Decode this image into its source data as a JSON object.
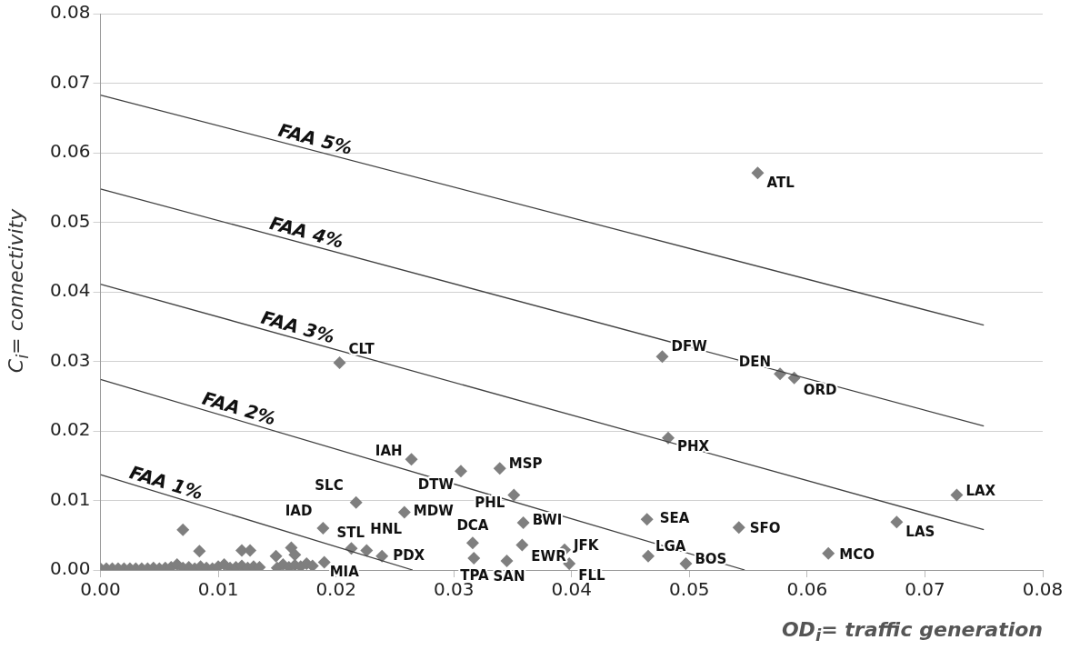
{
  "chart_data": {
    "type": "scatter",
    "xlabel": "OD$_{i}$= traffic generation",
    "ylabel": "C$_{i}$= connectivity",
    "xlim": [
      0,
      0.08
    ],
    "ylim": [
      0,
      0.08
    ],
    "xticks": [
      {
        "value": 0,
        "label": "0.00"
      },
      {
        "value": 0.01,
        "label": "0.01"
      },
      {
        "value": 0.02,
        "label": "0.02"
      },
      {
        "value": 0.03,
        "label": "0.03"
      },
      {
        "value": 0.04,
        "label": "0.04"
      },
      {
        "value": 0.05,
        "label": "0.05"
      },
      {
        "value": 0.06,
        "label": "0.06"
      },
      {
        "value": 0.07,
        "label": "0.07"
      },
      {
        "value": 0.08,
        "label": "0.08"
      }
    ],
    "yticks": [
      {
        "value": 0,
        "label": "0.00"
      },
      {
        "value": 0.01,
        "label": "0.01"
      },
      {
        "value": 0.02,
        "label": "0.02"
      },
      {
        "value": 0.03,
        "label": "0.03"
      },
      {
        "value": 0.04,
        "label": "0.04"
      },
      {
        "value": 0.05,
        "label": "0.05"
      },
      {
        "value": 0.06,
        "label": "0.06"
      },
      {
        "value": 0.07,
        "label": "0.07"
      },
      {
        "value": 0.08,
        "label": "0.08"
      }
    ],
    "grid": "y",
    "legend": false,
    "marker": "diamond",
    "series": [
      {
        "type": "line",
        "name": "FAA 5%",
        "color": "#404040",
        "x": [
          0,
          0.075
        ],
        "values": [
          0.0683,
          0.0352
        ],
        "marker": "none"
      },
      {
        "type": "line",
        "name": "FAA 4%",
        "color": "#404040",
        "x": [
          0,
          0.075
        ],
        "values": [
          0.0548,
          0.0207
        ],
        "marker": "none"
      },
      {
        "type": "line",
        "name": "FAA 3%",
        "color": "#404040",
        "x": [
          0,
          0.075
        ],
        "values": [
          0.0411,
          0.0058
        ],
        "marker": "none"
      },
      {
        "type": "line",
        "name": "FAA 2%",
        "color": "#404040",
        "x": [
          0,
          0.0547
        ],
        "values": [
          0.0274,
          0
        ],
        "marker": "none"
      },
      {
        "type": "line",
        "name": "FAA 1%",
        "color": "#404040",
        "x": [
          0,
          0.0265
        ],
        "values": [
          0.0137,
          0
        ],
        "marker": "none"
      },
      {
        "type": "scatter",
        "color": "#7f7f7f",
        "x": [
          0.0558,
          0.0203,
          0.0477,
          0.0577,
          0.0589,
          0.0482,
          0.0727,
          0.0676,
          0.0618,
          0.0542,
          0.0464,
          0.0465,
          0.0497,
          0.0394,
          0.0398,
          0.0264,
          0.0306,
          0.0339,
          0.0351,
          0.0258,
          0.0359,
          0.0316,
          0.0358,
          0.0317,
          0.0345,
          0.0217,
          0.0189,
          0.0213,
          0.0226,
          0.0239,
          0.019
        ],
        "values": [
          0.0571,
          0.0298,
          0.0307,
          0.0282,
          0.0276,
          0.019,
          0.0108,
          0.0069,
          0.0024,
          0.0061,
          0.0073,
          0.002,
          0.0009,
          0.0029,
          0.0009,
          0.0159,
          0.0142,
          0.0146,
          0.0108,
          0.0083,
          0.0068,
          0.0039,
          0.0036,
          0.0017,
          0.0013,
          0.0097,
          0.006,
          0.0031,
          0.0028,
          0.002,
          0.0011
        ],
        "value_labels": [
          "ATL",
          "CLT",
          "DFW",
          "DEN",
          "ORD",
          "PHX",
          "LAX",
          "LAS",
          "MCO",
          "SFO",
          "SEA",
          "LGA",
          "BOS",
          "JFK",
          "FLL",
          "IAH",
          "DTW",
          "MSP",
          "PHL",
          "MDW",
          "BWI",
          "DCA",
          "EWR",
          "TPA",
          "SAN",
          "SLC",
          "IAD",
          "STL",
          "HNL",
          "PDX",
          "MIA"
        ]
      },
      {
        "color": "#7f7f7f",
        "x": [
          0,
          0.0005,
          0.001,
          0.0015,
          0.002,
          0.0025,
          0.003,
          0.0035,
          0.004,
          0.0045,
          0.005,
          0.0055,
          0.006,
          0.0065,
          0.007,
          0.0075,
          0.008,
          0.0085,
          0.009,
          0.0095,
          0.01,
          0.0105,
          0.011,
          0.0115,
          0.012,
          0.0125,
          0.013,
          0.0135,
          0.015,
          0.0155,
          0.016,
          0.0165,
          0.017,
          0.0175,
          0.018,
          0.007,
          0.0084,
          0.012,
          0.0127,
          0.0149,
          0.0162,
          0.0165
        ],
        "values": [
          0.0002,
          0.0002,
          0.0002,
          0.0002,
          0.0002,
          0.0002,
          0.0002,
          0.0002,
          0.0002,
          0.0003,
          0.0002,
          0.0003,
          0.0004,
          0.0008,
          0.0003,
          0.0004,
          0.0002,
          0.0005,
          0.0003,
          0.0002,
          0.0005,
          0.0008,
          0.0003,
          0.0004,
          0.0006,
          0.0003,
          0.0005,
          0.0004,
          0.0003,
          0.0008,
          0.0004,
          0.0007,
          0.0005,
          0.0009,
          0.0006,
          0.0058,
          0.0027,
          0.0028,
          0.0028,
          0.002,
          0.0032,
          0.0022
        ]
      }
    ]
  }
}
